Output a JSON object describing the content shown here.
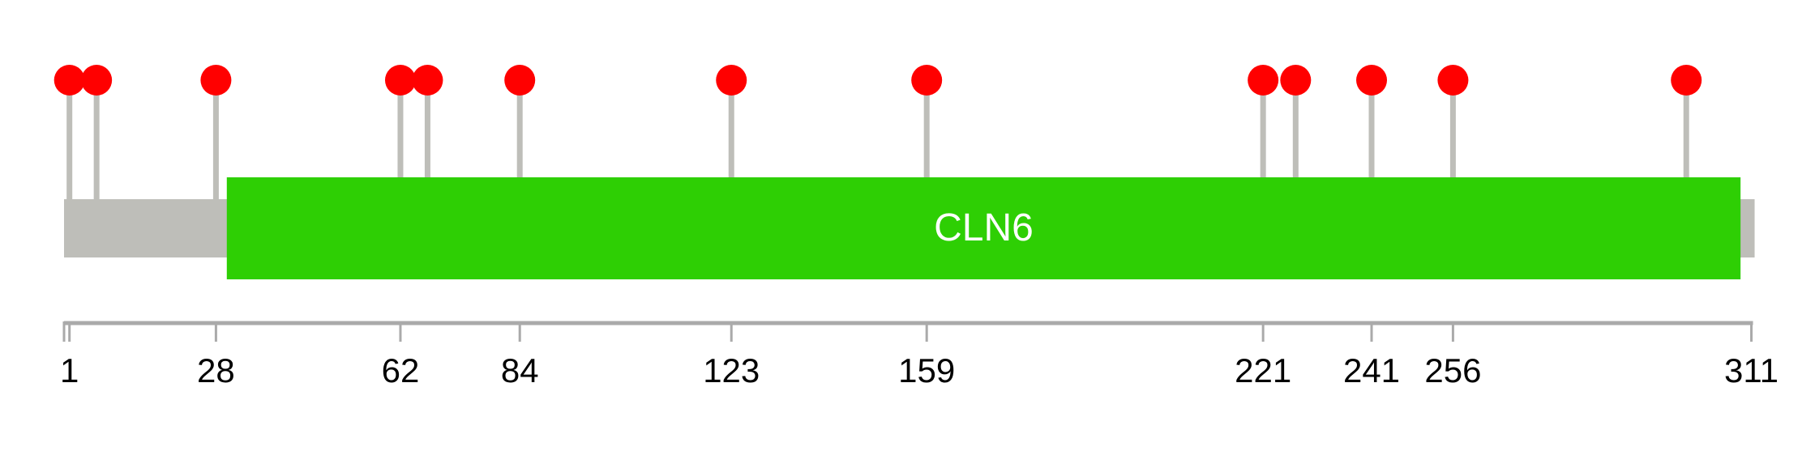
{
  "protein": {
    "length": 311,
    "backbone_color": "#bebeb9"
  },
  "domains": [
    {
      "name": "CLN6",
      "start": 30,
      "end": 309,
      "color": "#2ecf04",
      "label_color": "#ffffff"
    }
  ],
  "mutations": {
    "positions": [
      1,
      6,
      28,
      62,
      67,
      84,
      123,
      159,
      221,
      227,
      241,
      256,
      299
    ],
    "head_color": "#ff0000",
    "stick_color": "#bebeb9"
  },
  "axis": {
    "ticks": [
      1,
      28,
      62,
      84,
      123,
      159,
      221,
      241,
      256,
      311
    ],
    "tick_labels": [
      "1",
      "28",
      "62",
      "84",
      "123",
      "159",
      "221",
      "241",
      "256",
      "311"
    ],
    "color": "#aaaaaa"
  }
}
